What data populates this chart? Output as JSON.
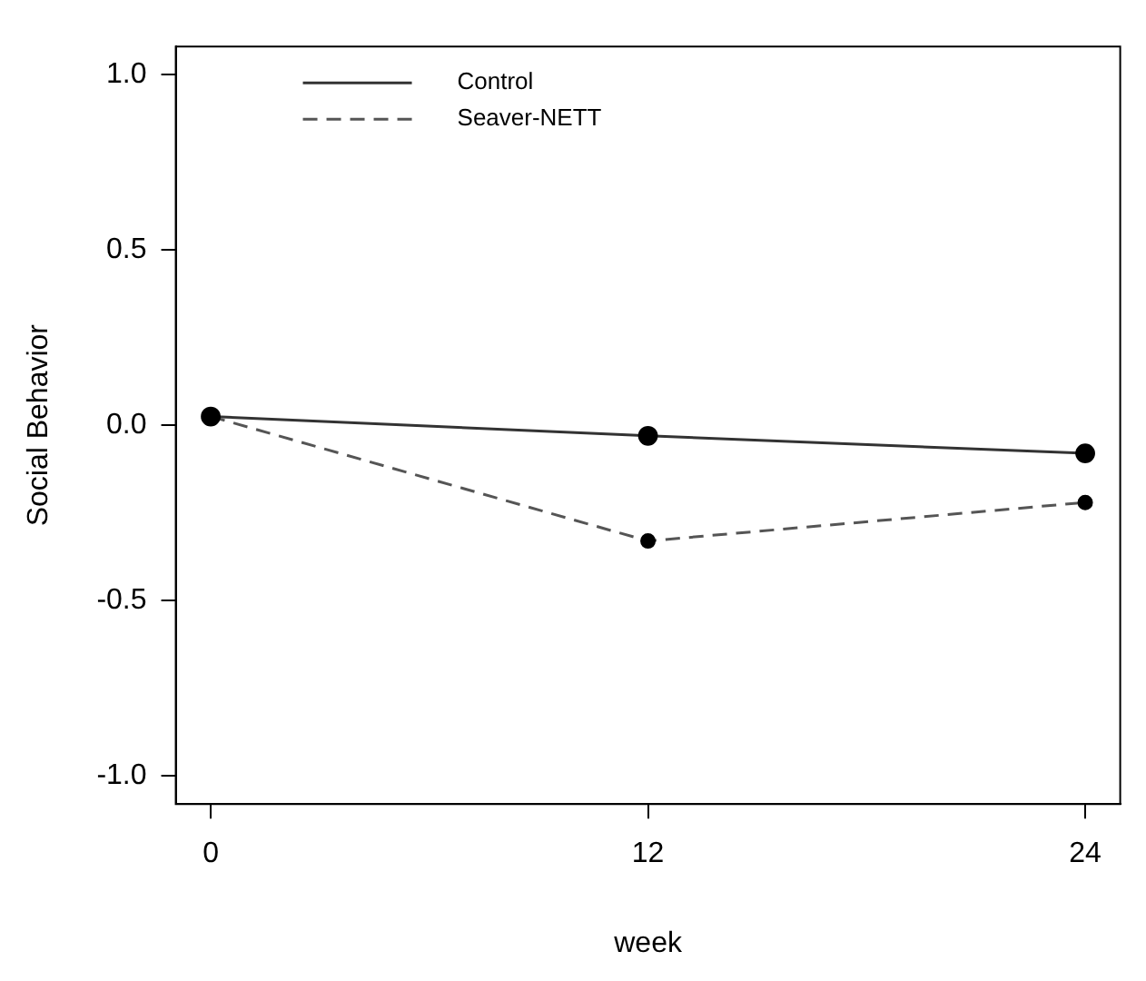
{
  "chart_data": {
    "type": "line",
    "xlabel": "week",
    "ylabel": "Social Behavior",
    "x": [
      0,
      12,
      24
    ],
    "series": [
      {
        "name": "Control",
        "color": "#333333",
        "values": [
          0.025,
          -0.03,
          -0.08
        ],
        "line_style": "solid"
      },
      {
        "name": "Seaver-NETT",
        "color": "#555555",
        "values": [
          0.025,
          -0.33,
          -0.22
        ],
        "line_style": "dashed"
      }
    ],
    "xlim": [
      -0.96,
      24.96
    ],
    "xticks": [
      0,
      12,
      24
    ],
    "ylim": [
      -1.08,
      1.08
    ],
    "yticks": [
      {
        "value": -1,
        "label": "-1.0"
      },
      {
        "value": -0.5,
        "label": "-0.5"
      },
      {
        "value": 0,
        "label": "0.0"
      },
      {
        "value": 0.5,
        "label": "0.5"
      },
      {
        "value": 1,
        "label": "1.0"
      }
    ],
    "grid": false,
    "legend": "top left",
    "marker": "circle"
  }
}
